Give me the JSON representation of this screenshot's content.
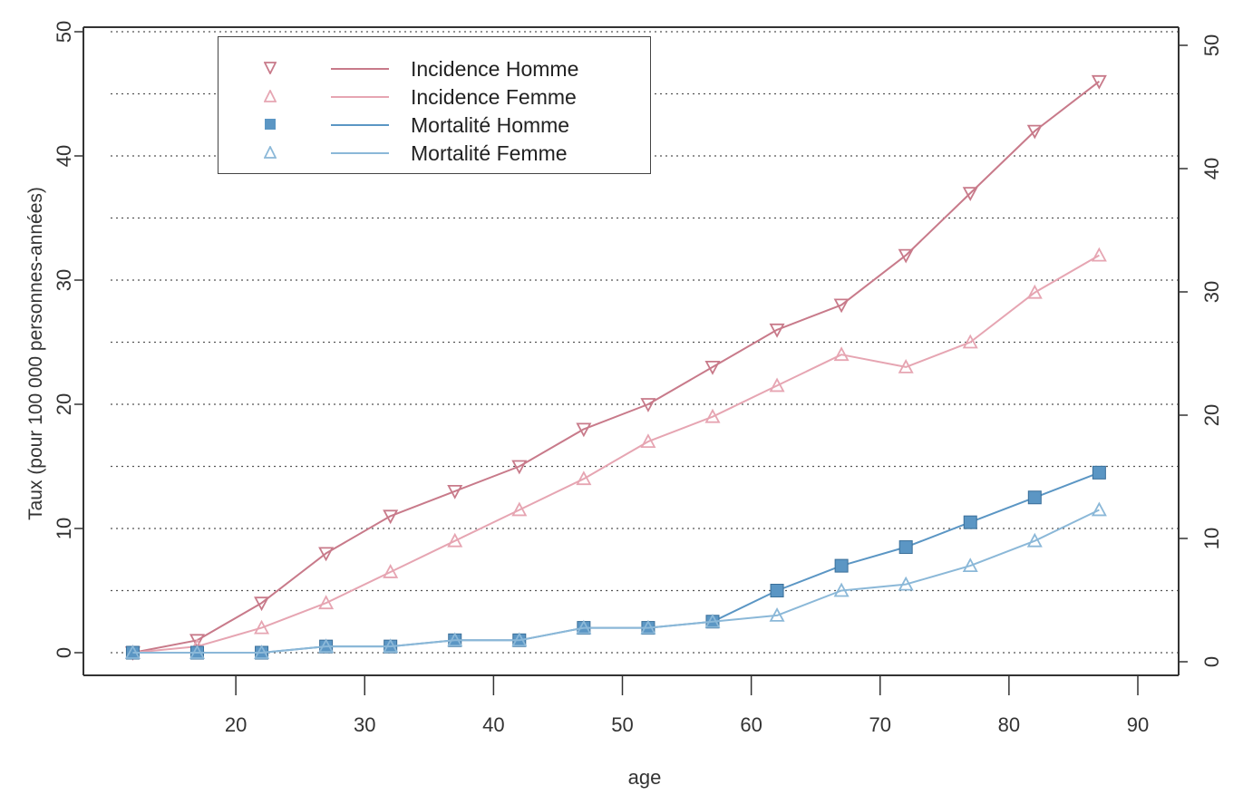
{
  "chart_data": {
    "type": "line",
    "xlabel": "age",
    "ylabel": "Taux (pour 100 000 personnes-années)",
    "x": [
      12,
      17,
      22,
      27,
      32,
      37,
      42,
      47,
      52,
      57,
      62,
      67,
      72,
      77,
      82,
      87
    ],
    "xticks": [
      "20",
      "30",
      "40",
      "50",
      "60",
      "70",
      "80",
      "90"
    ],
    "xlim": [
      10,
      90
    ],
    "ylim_left": [
      0,
      50
    ],
    "yticks_left": [
      "0",
      "10",
      "20",
      "30",
      "40",
      "50"
    ],
    "ylim_right": [
      0,
      50
    ],
    "yticks_right": [
      "0",
      "10",
      "20",
      "30",
      "40",
      "50"
    ],
    "grid": "horizontal dotted",
    "legend_position": "top-left",
    "series": [
      {
        "name": "Incidence Homme",
        "color": "#c87a8a",
        "marker": "triangle-down",
        "values": [
          0,
          1,
          4,
          8,
          11,
          13,
          15,
          18,
          20,
          23,
          26,
          28,
          32,
          37,
          42,
          46
        ]
      },
      {
        "name": "Incidence Femme",
        "color": "#e6a5b2",
        "marker": "triangle-up",
        "values": [
          0,
          0.5,
          2,
          4,
          6.5,
          9,
          11.5,
          14,
          17,
          19,
          21.5,
          24,
          23,
          25,
          29,
          32
        ]
      },
      {
        "name": "Mortalité Homme",
        "color": "#5b96c4",
        "marker": "square",
        "values": [
          0,
          0,
          0,
          0.5,
          0.5,
          1,
          1,
          2,
          2,
          2.5,
          5,
          7,
          8.5,
          10.5,
          12.5,
          14.5
        ]
      },
      {
        "name": "Mortalité Femme",
        "color": "#8bb8d8",
        "marker": "triangle-up",
        "values": [
          0,
          0,
          0,
          0.5,
          0.5,
          1,
          1,
          2,
          2,
          2.5,
          3,
          5,
          5.5,
          7,
          9,
          11.5
        ]
      }
    ]
  }
}
